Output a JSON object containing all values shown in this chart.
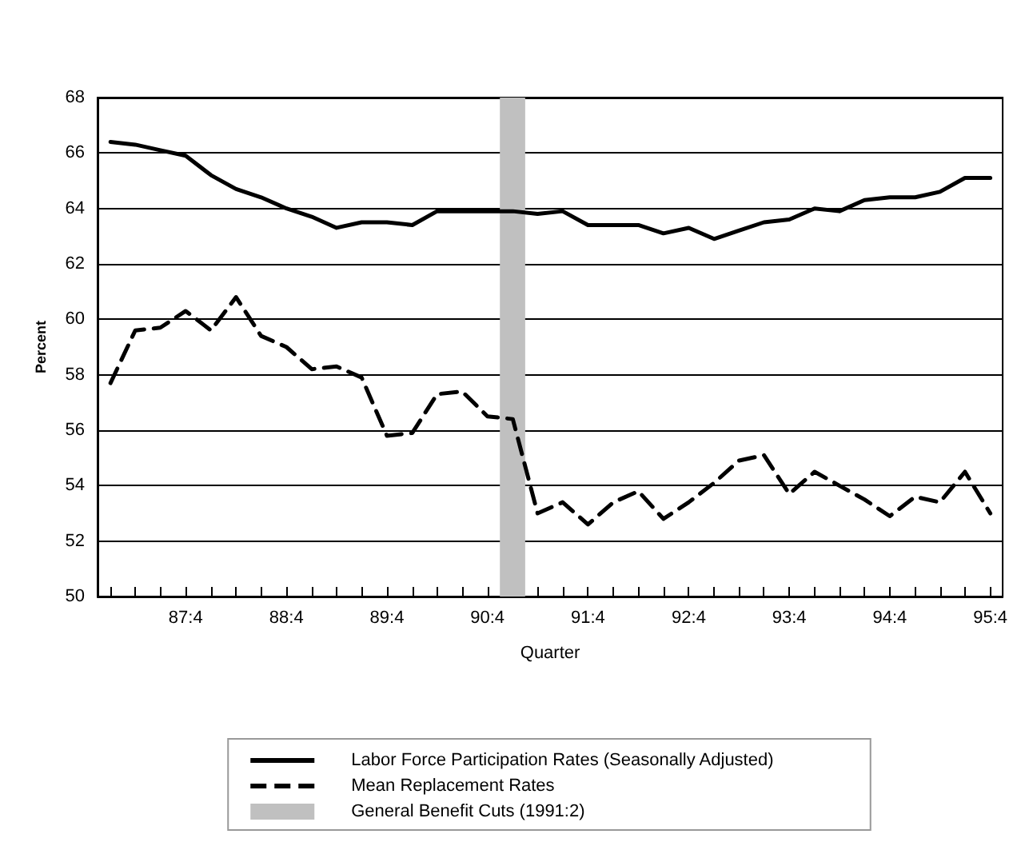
{
  "chart_data": {
    "type": "line",
    "xlabel": "Quarter",
    "ylabel": "Percent",
    "x": [
      "1987-01",
      "1987-04",
      "1987-07",
      "1987-10",
      "1988-01",
      "1988-04",
      "1988-07",
      "1988-10",
      "1989-01",
      "1989-04",
      "1989-07",
      "1989-10",
      "1990-01",
      "1990-04",
      "1990-07",
      "1990-10",
      "1991-01",
      "1991-04",
      "1991-07",
      "1991-10",
      "1992-01",
      "1992-04",
      "1992-07",
      "1992-10",
      "1993-01",
      "1993-04",
      "1993-07",
      "1993-10",
      "1994-01",
      "1994-04",
      "1994-07",
      "1994-10",
      "1995-01",
      "1995-04",
      "1995-07",
      "1995-10"
    ],
    "xlim": [
      "1986-11-15",
      "1995-11-15"
    ],
    "xticks": [
      {
        "value": "1987-01",
        "label": null
      },
      {
        "value": "1987-04",
        "label": null
      },
      {
        "value": "1987-07",
        "label": null
      },
      {
        "value": "1987-10",
        "label": "87:4"
      },
      {
        "value": "1988-01",
        "label": null
      },
      {
        "value": "1988-04",
        "label": null
      },
      {
        "value": "1988-07",
        "label": null
      },
      {
        "value": "1988-10",
        "label": "88:4"
      },
      {
        "value": "1989-01",
        "label": null
      },
      {
        "value": "1989-04",
        "label": null
      },
      {
        "value": "1989-07",
        "label": null
      },
      {
        "value": "1989-10",
        "label": "89:4"
      },
      {
        "value": "1990-01",
        "label": null
      },
      {
        "value": "1990-04",
        "label": null
      },
      {
        "value": "1990-07",
        "label": null
      },
      {
        "value": "1990-10",
        "label": "90:4"
      },
      {
        "value": "1991-01",
        "label": null
      },
      {
        "value": "1991-04",
        "label": null
      },
      {
        "value": "1991-07",
        "label": null
      },
      {
        "value": "1991-10",
        "label": "91:4"
      },
      {
        "value": "1992-01",
        "label": null
      },
      {
        "value": "1992-04",
        "label": null
      },
      {
        "value": "1992-07",
        "label": null
      },
      {
        "value": "1992-10",
        "label": "92:4"
      },
      {
        "value": "1993-01",
        "label": null
      },
      {
        "value": "1993-04",
        "label": null
      },
      {
        "value": "1993-07",
        "label": null
      },
      {
        "value": "1993-10",
        "label": "93:4"
      },
      {
        "value": "1994-01",
        "label": null
      },
      {
        "value": "1994-04",
        "label": null
      },
      {
        "value": "1994-07",
        "label": null
      },
      {
        "value": "1994-10",
        "label": "94:4"
      },
      {
        "value": "1995-01",
        "label": null
      },
      {
        "value": "1995-04",
        "label": null
      },
      {
        "value": "1995-07",
        "label": null
      },
      {
        "value": "1995-10",
        "label": "95:4"
      }
    ],
    "ylim": [
      50,
      68
    ],
    "yticks": [
      50,
      52,
      54,
      56,
      58,
      60,
      62,
      64,
      66,
      68
    ],
    "series": [
      {
        "name": "Labor Force Participation Rates (Seasonally Adjusted)",
        "color": "#000000",
        "line_style": "solid",
        "values": [
          66.4,
          66.3,
          66.1,
          65.9,
          65.2,
          64.7,
          64.4,
          64.0,
          63.7,
          63.3,
          63.5,
          63.5,
          63.4,
          63.9,
          63.9,
          63.9,
          63.9,
          63.8,
          63.9,
          63.4,
          63.4,
          63.4,
          63.1,
          63.3,
          62.9,
          63.2,
          63.5,
          63.6,
          64.0,
          63.9,
          64.3,
          64.4,
          64.4,
          64.6,
          65.1,
          65.1
        ]
      },
      {
        "name": "Mean Replacement Rates",
        "color": "#000000",
        "line_style": "dashed",
        "values": [
          57.7,
          59.6,
          59.7,
          60.3,
          59.6,
          60.8,
          59.4,
          59.0,
          58.2,
          58.3,
          57.9,
          55.8,
          55.9,
          57.3,
          57.4,
          56.5,
          56.4,
          53.0,
          53.4,
          52.6,
          53.4,
          53.8,
          52.8,
          53.4,
          54.1,
          54.9,
          55.1,
          53.7,
          54.5,
          54.0,
          53.5,
          52.9,
          53.6,
          53.4,
          54.5,
          53.0
        ]
      }
    ],
    "bands": [
      {
        "axis": "x",
        "from": "1990-11-15",
        "to": "1991-02-15",
        "label": "General Benefit Cuts (1991:2)",
        "color": "#c0c0c0"
      }
    ],
    "grid": "y",
    "legend": "bottom",
    "marker": "none"
  }
}
